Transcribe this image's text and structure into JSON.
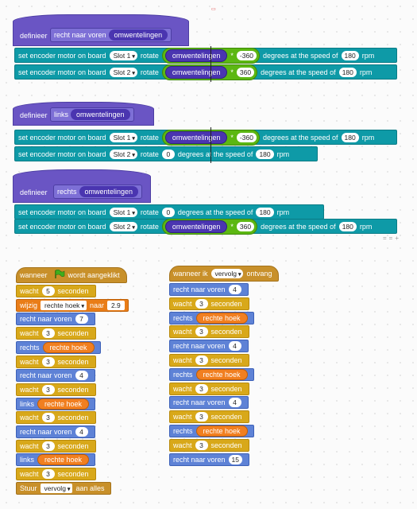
{
  "def1": {
    "hat": "definieer",
    "name": "recht naar voren",
    "arg": "omwentelingen"
  },
  "def1_blocks": [
    {
      "pre": "set encoder motor on board",
      "slot": "Slot 1",
      "rot": "rotate",
      "var": "omwentelingen",
      "op": "*",
      "factor": "-360",
      "deg": "degrees at the speed of",
      "speed": "180",
      "rpm": "rpm"
    },
    {
      "pre": "set encoder motor on board",
      "slot": "Slot 2",
      "rot": "rotate",
      "var": "omwentelingen",
      "op": "*",
      "factor": "360",
      "deg": "degrees at the speed of",
      "speed": "180",
      "rpm": "rpm"
    }
  ],
  "def2": {
    "hat": "definieer",
    "name": "links",
    "arg": "omwentelingen"
  },
  "def2_blocks": [
    {
      "pre": "set encoder motor on board",
      "slot": "Slot 1",
      "rot": "rotate",
      "var": "omwentelingen",
      "op": "*",
      "factor": "-360",
      "deg": "degrees at the speed of",
      "speed": "180",
      "rpm": "rpm"
    },
    {
      "pre": "set encoder motor on board",
      "slot": "Slot 2",
      "rot": "rotate",
      "value": "0",
      "deg": "degrees at the speed of",
      "speed": "180",
      "rpm": "rpm"
    }
  ],
  "def3": {
    "hat": "definieer",
    "name": "rechts",
    "arg": "omwentelingen"
  },
  "def3_blocks": [
    {
      "pre": "set encoder motor on board",
      "slot": "Slot 1",
      "rot": "rotate",
      "value": "0",
      "deg": "degrees at the speed of",
      "speed": "180",
      "rpm": "rpm"
    },
    {
      "pre": "set encoder motor on board",
      "slot": "Slot 2",
      "rot": "rotate",
      "var": "omwentelingen",
      "op": "*",
      "factor": "360",
      "deg": "degrees at the speed of",
      "speed": "180",
      "rpm": "rpm"
    }
  ],
  "zoom": {
    "minus": "=",
    "reset": "=",
    "plus": "+"
  },
  "script1": {
    "hat": {
      "pre": "wanneer",
      "post": "wordt aangeklikt"
    },
    "blocks": [
      {
        "kind": "wait",
        "a": "wacht",
        "n": "5",
        "b": "seconden"
      },
      {
        "kind": "change",
        "a": "wijzig",
        "dd": "rechte hoek",
        "b": "naar",
        "n": "2.9"
      },
      {
        "kind": "forward",
        "a": "recht naar voren",
        "n": "7"
      },
      {
        "kind": "wait",
        "a": "wacht",
        "n": "3",
        "b": "seconden"
      },
      {
        "kind": "turn",
        "a": "rechts",
        "v": "rechte hoek"
      },
      {
        "kind": "wait",
        "a": "wacht",
        "n": "3",
        "b": "seconden"
      },
      {
        "kind": "forward",
        "a": "recht naar voren",
        "n": "4"
      },
      {
        "kind": "wait",
        "a": "wacht",
        "n": "3",
        "b": "seconden"
      },
      {
        "kind": "turn",
        "a": "links",
        "v": "rechte hoek"
      },
      {
        "kind": "wait",
        "a": "wacht",
        "n": "3",
        "b": "seconden"
      },
      {
        "kind": "forward",
        "a": "recht naar voren",
        "n": "4"
      },
      {
        "kind": "wait",
        "a": "wacht",
        "n": "3",
        "b": "seconden"
      },
      {
        "kind": "turn",
        "a": "links",
        "v": "rechte hoek"
      },
      {
        "kind": "wait",
        "a": "wacht",
        "n": "3",
        "b": "seconden"
      },
      {
        "kind": "send",
        "a": "Stuur",
        "dd": "vervolg",
        "b": "aan alles"
      }
    ]
  },
  "script2": {
    "hat": {
      "pre": "wanneer ik",
      "dd": "vervolg",
      "post": "ontvang"
    },
    "blocks": [
      {
        "kind": "forward",
        "a": "recht naar voren",
        "n": "4"
      },
      {
        "kind": "wait",
        "a": "wacht",
        "n": "3",
        "b": "seconden"
      },
      {
        "kind": "turn",
        "a": "rechts",
        "v": "rechte hoek"
      },
      {
        "kind": "wait",
        "a": "wacht",
        "n": "3",
        "b": "seconden"
      },
      {
        "kind": "forward",
        "a": "recht naar voren",
        "n": "4"
      },
      {
        "kind": "wait",
        "a": "wacht",
        "n": "3",
        "b": "seconden"
      },
      {
        "kind": "turn",
        "a": "rechts",
        "v": "rechte hoek"
      },
      {
        "kind": "wait",
        "a": "wacht",
        "n": "3",
        "b": "seconden"
      },
      {
        "kind": "forward",
        "a": "recht naar voren",
        "n": "4"
      },
      {
        "kind": "wait",
        "a": "wacht",
        "n": "3",
        "b": "seconden"
      },
      {
        "kind": "turn",
        "a": "rechts",
        "v": "rechte hoek"
      },
      {
        "kind": "wait",
        "a": "wacht",
        "n": "3",
        "b": "seconden"
      },
      {
        "kind": "forward",
        "a": "recht naar voren",
        "n": "15"
      }
    ]
  },
  "colors": {
    "teal": "#0e9aa7",
    "purple": "#6a55c4",
    "wait": "#d8a81a",
    "custom": "#4c7dd1",
    "change": "#e97d18",
    "event": "#c8902a",
    "green_op": "#5cb712",
    "orange_var": "#f17f20"
  }
}
